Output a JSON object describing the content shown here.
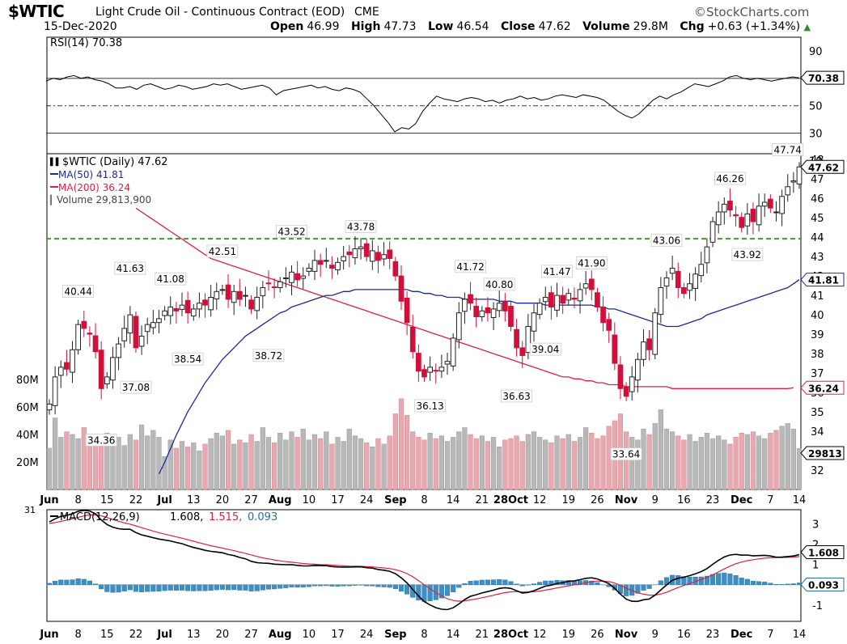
{
  "header": {
    "symbol": "$WTIC",
    "contract": "Light Crude Oil - Continuous Contract (EOD)",
    "exchange": "CME",
    "watermark": "©StockCharts.com",
    "date": "15-Dec-2020",
    "ohlc": [
      {
        "label": "Open",
        "value": "46.99"
      },
      {
        "label": "High",
        "value": "47.73"
      },
      {
        "label": "Low",
        "value": "46.54"
      },
      {
        "label": "Close",
        "value": "47.62"
      },
      {
        "label": "Volume",
        "value": "29.8M"
      },
      {
        "label": "Chg",
        "value": "+0.63 (+1.34%)"
      }
    ],
    "change_arrow": "up-triangle-icon",
    "colors": {
      "up": "#2a8a2a",
      "down": "#d0103a"
    }
  },
  "chart_data": [
    {
      "type": "line",
      "panel": "rsi",
      "legend": "RSI(14) 70.38",
      "ylim": [
        15,
        100
      ],
      "ticks": [
        90,
        70,
        50,
        30,
        10
      ],
      "reference_lines": [
        70,
        50,
        30
      ],
      "last_value_label": "70.38",
      "values": [
        68,
        70,
        69,
        71,
        72,
        70,
        71,
        69,
        68,
        66,
        63,
        63,
        64,
        62,
        65,
        66,
        64,
        62,
        63,
        65,
        64,
        62,
        63,
        64,
        66,
        65,
        66,
        64,
        62,
        63,
        64,
        65,
        63,
        58,
        61,
        62,
        63,
        64,
        65,
        63,
        64,
        62,
        61,
        63,
        62,
        60,
        55,
        50,
        44,
        38,
        31,
        34,
        33,
        37,
        46,
        52,
        57,
        55,
        54,
        53,
        55,
        56,
        55,
        53,
        54,
        52,
        54,
        55,
        57,
        55,
        56,
        54,
        55,
        57,
        58,
        57,
        56,
        58,
        57,
        56,
        54,
        50,
        46,
        43,
        41,
        44,
        49,
        54,
        57,
        55,
        58,
        60,
        63,
        66,
        65,
        64,
        66,
        68,
        71,
        72,
        70,
        69,
        70,
        69,
        68,
        69,
        70,
        71,
        70.38
      ]
    },
    {
      "type": "candlestick",
      "panel": "price",
      "legend": {
        "title": "$WTIC (Daily) 47.62",
        "ma50": "MA(50) 41.81",
        "ma200": "MA(200) 36.24",
        "volume": "Volume 29,813,900"
      },
      "ylim": [
        31,
        48.3
      ],
      "y_ticks": [
        48,
        47,
        46,
        45,
        44,
        43,
        42,
        41,
        40,
        39,
        38,
        37,
        36,
        35,
        34,
        32
      ],
      "x_labels": [
        "Jun",
        "8",
        "15",
        "22",
        "Jul",
        "13",
        "20",
        "27",
        "Aug",
        "10",
        "17",
        "24",
        "Sep",
        "8",
        "14",
        "21",
        "28Oct",
        "12",
        "19",
        "26",
        "Nov",
        "9",
        "16",
        "23",
        "Dec",
        "7",
        "14"
      ],
      "x_label_positions": [
        0,
        5,
        10,
        15,
        20,
        25,
        30,
        35,
        40,
        45,
        50,
        55,
        60,
        65,
        70,
        75,
        80,
        85,
        90,
        95,
        100,
        105,
        110,
        115,
        120,
        125,
        130
      ],
      "resistance_level": 43.92,
      "value_labels": {
        "last_close": "47.62",
        "ma50": "41.81",
        "ma200": "36.24"
      },
      "annotations": [
        {
          "i": 5,
          "value": 40.44,
          "text": "40.44",
          "pos": "above"
        },
        {
          "i": 9,
          "value": 34.36,
          "text": "34.36",
          "pos": "below"
        },
        {
          "i": 14,
          "value": 41.63,
          "text": "41.63",
          "pos": "above"
        },
        {
          "i": 15,
          "value": 37.08,
          "text": "37.08",
          "pos": "below"
        },
        {
          "i": 21,
          "value": 41.08,
          "text": "41.08",
          "pos": "above"
        },
        {
          "i": 24,
          "value": 38.54,
          "text": "38.54",
          "pos": "below"
        },
        {
          "i": 30,
          "value": 42.51,
          "text": "42.51",
          "pos": "above"
        },
        {
          "i": 38,
          "value": 38.72,
          "text": "38.72",
          "pos": "below"
        },
        {
          "i": 42,
          "value": 43.52,
          "text": "43.52",
          "pos": "above"
        },
        {
          "i": 54,
          "value": 43.78,
          "text": "43.78",
          "pos": "above"
        },
        {
          "i": 66,
          "value": 36.13,
          "text": "36.13",
          "pos": "below"
        },
        {
          "i": 73,
          "value": 41.72,
          "text": "41.72",
          "pos": "above"
        },
        {
          "i": 78,
          "value": 40.8,
          "text": "40.80",
          "pos": "above"
        },
        {
          "i": 81,
          "value": 36.63,
          "text": "36.63",
          "pos": "below"
        },
        {
          "i": 86,
          "value": 39.04,
          "text": "39.04",
          "pos": "below"
        },
        {
          "i": 88,
          "value": 41.47,
          "text": "41.47",
          "pos": "above"
        },
        {
          "i": 94,
          "value": 41.9,
          "text": "41.90",
          "pos": "above"
        },
        {
          "i": 100,
          "value": 33.64,
          "text": "33.64",
          "pos": "below"
        },
        {
          "i": 107,
          "value": 43.06,
          "text": "43.06",
          "pos": "above"
        },
        {
          "i": 118,
          "value": 46.26,
          "text": "46.26",
          "pos": "above"
        },
        {
          "i": 121,
          "value": 43.92,
          "text": "43.92",
          "pos": "below"
        },
        {
          "i": 128,
          "value": 47.74,
          "text": "47.74",
          "pos": "above"
        }
      ],
      "close": [
        35.4,
        36.8,
        37.3,
        37.2,
        38.2,
        39.5,
        39.3,
        39.0,
        38.1,
        36.2,
        36.8,
        37.8,
        38.5,
        39.3,
        40.0,
        38.3,
        38.9,
        39.5,
        39.6,
        39.8,
        40.2,
        40.4,
        40.2,
        40.5,
        40.1,
        40.3,
        40.6,
        40.5,
        40.9,
        41.2,
        41.3,
        40.8,
        41.2,
        40.8,
        41.0,
        40.3,
        40.9,
        41.4,
        41.6,
        41.4,
        41.7,
        41.9,
        42.2,
        41.8,
        42.0,
        42.4,
        42.8,
        42.6,
        42.8,
        42.4,
        42.7,
        43.0,
        43.1,
        43.4,
        43.5,
        43.0,
        43.3,
        42.8,
        43.1,
        42.9,
        42.0,
        40.7,
        39.6,
        38.1,
        37.1,
        36.8,
        37.3,
        37.1,
        37.3,
        37.6,
        38.8,
        40.1,
        40.8,
        40.6,
        39.9,
        40.2,
        40.1,
        40.3,
        40.6,
        40.2,
        39.4,
        38.3,
        37.9,
        39.4,
        40.1,
        40.6,
        40.9,
        40.4,
        41.0,
        40.6,
        41.1,
        40.8,
        41.3,
        41.6,
        41.3,
        40.4,
        39.6,
        39.2,
        37.5,
        36.2,
        35.8,
        36.8,
        37.7,
        38.6,
        38.2,
        40.1,
        41.4,
        41.9,
        42.4,
        41.4,
        41.1,
        41.6,
        42.1,
        42.6,
        43.5,
        44.8,
        45.3,
        45.7,
        45.4,
        45.1,
        44.5,
        45.2,
        44.8,
        45.6,
        45.8,
        45.5,
        45.3,
        46.1,
        46.6,
        46.9,
        47.62
      ],
      "ma50": [
        null,
        null,
        null,
        null,
        null,
        null,
        null,
        null,
        null,
        null,
        null,
        null,
        null,
        null,
        null,
        null,
        null,
        null,
        null,
        31.8,
        32.4,
        33.1,
        33.8,
        34.4,
        35.0,
        35.5,
        36.0,
        36.5,
        36.9,
        37.3,
        37.7,
        38.0,
        38.3,
        38.6,
        38.9,
        39.1,
        39.3,
        39.5,
        39.7,
        39.9,
        40.1,
        40.2,
        40.4,
        40.5,
        40.6,
        40.7,
        40.8,
        40.9,
        41.0,
        41.0,
        41.1,
        41.2,
        41.2,
        41.3,
        41.3,
        41.3,
        41.3,
        41.3,
        41.3,
        41.3,
        41.3,
        41.3,
        41.3,
        41.2,
        41.2,
        41.1,
        41.1,
        41.0,
        41.0,
        40.9,
        40.9,
        40.9,
        40.8,
        40.8,
        40.8,
        40.8,
        40.8,
        40.8,
        40.7,
        40.7,
        40.7,
        40.6,
        40.6,
        40.6,
        40.6,
        40.6,
        40.5,
        40.5,
        40.5,
        40.5,
        40.5,
        40.5,
        40.5,
        40.5,
        40.5,
        40.4,
        40.4,
        40.3,
        40.3,
        40.2,
        40.1,
        40.0,
        39.9,
        39.8,
        39.7,
        39.6,
        39.5,
        39.4,
        39.4,
        39.4,
        39.5,
        39.6,
        39.7,
        39.8,
        40.0,
        40.1,
        40.2,
        40.3,
        40.4,
        40.5,
        40.6,
        40.7,
        40.8,
        40.9,
        41.0,
        41.1,
        41.2,
        41.3,
        41.4,
        41.6,
        41.81
      ],
      "ma200": [
        null,
        null,
        null,
        null,
        null,
        null,
        null,
        null,
        null,
        null,
        null,
        null,
        null,
        null,
        null,
        45.5,
        45.3,
        45.1,
        44.9,
        44.7,
        44.5,
        44.3,
        44.1,
        43.9,
        43.7,
        43.5,
        43.3,
        43.1,
        42.9,
        42.8,
        42.7,
        42.6,
        42.5,
        42.4,
        42.3,
        42.2,
        42.1,
        42.0,
        41.9,
        41.8,
        41.7,
        41.6,
        41.5,
        41.4,
        41.3,
        41.2,
        41.1,
        41.0,
        40.9,
        40.8,
        40.7,
        40.6,
        40.5,
        40.4,
        40.3,
        40.2,
        40.1,
        40.0,
        39.9,
        39.8,
        39.7,
        39.6,
        39.5,
        39.4,
        39.3,
        39.2,
        39.1,
        39.0,
        38.9,
        38.8,
        38.7,
        38.6,
        38.5,
        38.4,
        38.3,
        38.2,
        38.1,
        38.0,
        37.9,
        37.8,
        37.7,
        37.6,
        37.5,
        37.4,
        37.3,
        37.2,
        37.1,
        37.0,
        36.9,
        36.8,
        36.8,
        36.7,
        36.7,
        36.6,
        36.6,
        36.5,
        36.5,
        36.4,
        36.4,
        36.4,
        36.3,
        36.3,
        36.3,
        36.3,
        36.3,
        36.3,
        36.3,
        36.3,
        36.2,
        36.2,
        36.2,
        36.2,
        36.2,
        36.2,
        36.2,
        36.2,
        36.2,
        36.2,
        36.2,
        36.2,
        36.2,
        36.2,
        36.2,
        36.2,
        36.2,
        36.2,
        36.2,
        36.2,
        36.2,
        36.24
      ],
      "volume_ticks": [
        80,
        60,
        40,
        20
      ],
      "volume": [
        30,
        52,
        38,
        42,
        40,
        37,
        45,
        34,
        32,
        38,
        41,
        35,
        38,
        32,
        40,
        36,
        47,
        39,
        43,
        38,
        24,
        36,
        30,
        35,
        31,
        34,
        28,
        33,
        37,
        41,
        39,
        43,
        33,
        36,
        34,
        40,
        35,
        45,
        38,
        34,
        41,
        36,
        42,
        38,
        44,
        36,
        40,
        37,
        42,
        33,
        38,
        35,
        44,
        39,
        37,
        34,
        31,
        37,
        33,
        39,
        55,
        66,
        54,
        42,
        38,
        36,
        41,
        37,
        39,
        35,
        38,
        42,
        45,
        40,
        37,
        39,
        35,
        38,
        31,
        36,
        37,
        39,
        35,
        40,
        42,
        38,
        36,
        34,
        39,
        37,
        40,
        35,
        38,
        45,
        41,
        37,
        39,
        46,
        50,
        55,
        42,
        38,
        36,
        44,
        40,
        48,
        58,
        44,
        42,
        39,
        36,
        40,
        35,
        38,
        41,
        37,
        39,
        36,
        33,
        38,
        41,
        40,
        42,
        39,
        37,
        41,
        43,
        46,
        48,
        44,
        29.8
      ]
    },
    {
      "type": "line",
      "panel": "macd",
      "legend": {
        "title": "MACD(12,26,9)",
        "macd": "1.608",
        "signal": "1.515",
        "hist": "0.093"
      },
      "left_clip_label": "31",
      "ylim": [
        -1.8,
        3.7
      ],
      "ticks": [
        3,
        2,
        1,
        -1
      ],
      "zero_line": 0,
      "value_labels": {
        "macd": "1.608",
        "hist": "0.093"
      }
    }
  ]
}
